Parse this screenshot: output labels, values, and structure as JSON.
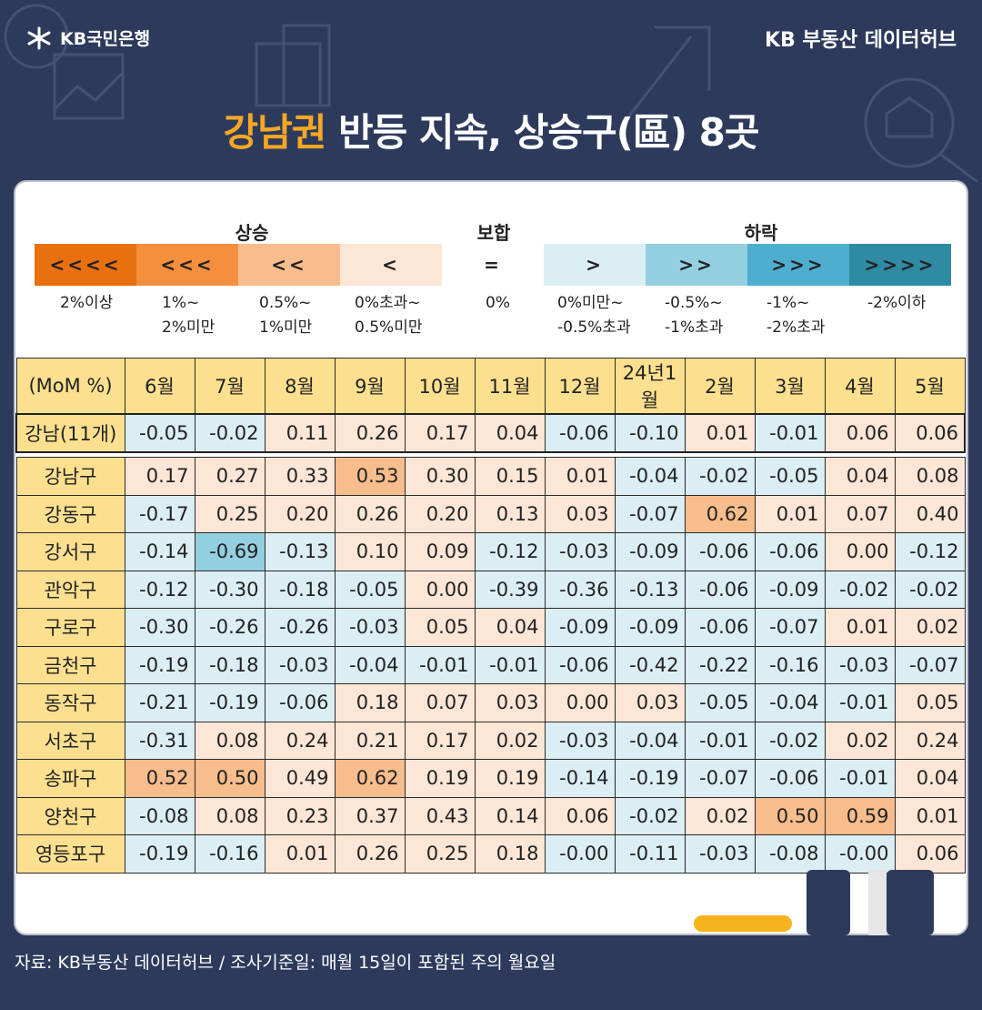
{
  "header": {
    "brand_left": "KB국민은행",
    "brand_right": "KB 부동산  데이터허브",
    "title_highlight": "강남권",
    "title_rest": " 반등 지속, 상승구(區) 8곳"
  },
  "legend": {
    "group_up": "상승",
    "group_flat": "보합",
    "group_down": "하락",
    "cells": [
      {
        "symbol": "<<<<",
        "color": "#e8700f",
        "label": [
          "2%이상"
        ]
      },
      {
        "symbol": "<<<",
        "color": "#f58f3e",
        "label": [
          "1%~",
          "2%미만"
        ]
      },
      {
        "symbol": "<<",
        "color": "#f8bd8c",
        "label": [
          "0.5%~",
          "1%미만"
        ]
      },
      {
        "symbol": "<",
        "color": "#fde6d6",
        "label": [
          "0%초과~",
          "0.5%미만"
        ]
      },
      {
        "symbol": "=",
        "color": "#ffffff",
        "label": [
          "0%"
        ]
      },
      {
        "symbol": ">",
        "color": "#dbeef4",
        "label": [
          "0%미만~",
          "-0.5%초과"
        ]
      },
      {
        "symbol": ">>",
        "color": "#93cfe0",
        "label": [
          "-0.5%~",
          "-1%초과"
        ]
      },
      {
        "symbol": ">>>",
        "color": "#4eaed0",
        "label": [
          "-1%~",
          "-2%초과"
        ]
      },
      {
        "symbol": ">>>>",
        "color": "#2f8aa3",
        "label": [
          "-2%이하"
        ]
      }
    ]
  },
  "chart_data": {
    "type": "heatmap",
    "corner_label": "(MoM %)",
    "columns": [
      "6월",
      "7월",
      "8월",
      "9월",
      "10월",
      "11월",
      "12월",
      "24년1월",
      "2월",
      "3월",
      "4월",
      "5월"
    ],
    "rows": [
      {
        "name": "강남(11개)",
        "values": [
          "-0.05",
          "-0.02",
          "0.11",
          "0.26",
          "0.17",
          "0.04",
          "-0.06",
          "-0.10",
          "0.01",
          "-0.01",
          "0.06",
          "0.06"
        ]
      },
      {
        "name": "강남구",
        "values": [
          "0.17",
          "0.27",
          "0.33",
          "0.53",
          "0.30",
          "0.15",
          "0.01",
          "-0.04",
          "-0.02",
          "-0.05",
          "0.04",
          "0.08"
        ]
      },
      {
        "name": "강동구",
        "values": [
          "-0.17",
          "0.25",
          "0.20",
          "0.26",
          "0.20",
          "0.13",
          "0.03",
          "-0.07",
          "0.62",
          "0.01",
          "0.07",
          "0.40"
        ]
      },
      {
        "name": "강서구",
        "values": [
          "-0.14",
          "-0.69",
          "-0.13",
          "0.10",
          "0.09",
          "-0.12",
          "-0.03",
          "-0.09",
          "-0.06",
          "-0.06",
          "0.00",
          "-0.12"
        ]
      },
      {
        "name": "관악구",
        "values": [
          "-0.12",
          "-0.30",
          "-0.18",
          "-0.05",
          "0.00",
          "-0.39",
          "-0.36",
          "-0.13",
          "-0.06",
          "-0.09",
          "-0.02",
          "-0.02"
        ]
      },
      {
        "name": "구로구",
        "values": [
          "-0.30",
          "-0.26",
          "-0.26",
          "-0.03",
          "0.05",
          "0.04",
          "-0.09",
          "-0.09",
          "-0.06",
          "-0.07",
          "0.01",
          "0.02"
        ]
      },
      {
        "name": "금천구",
        "values": [
          "-0.19",
          "-0.18",
          "-0.03",
          "-0.04",
          "-0.01",
          "-0.01",
          "-0.06",
          "-0.42",
          "-0.22",
          "-0.16",
          "-0.03",
          "-0.07"
        ]
      },
      {
        "name": "동작구",
        "values": [
          "-0.21",
          "-0.19",
          "-0.06",
          "0.18",
          "0.07",
          "0.03",
          "0.00",
          "0.03",
          "-0.05",
          "-0.04",
          "-0.01",
          "0.05"
        ]
      },
      {
        "name": "서초구",
        "values": [
          "-0.31",
          "0.08",
          "0.24",
          "0.21",
          "0.17",
          "0.02",
          "-0.03",
          "-0.04",
          "-0.01",
          "-0.02",
          "0.02",
          "0.24"
        ]
      },
      {
        "name": "송파구",
        "values": [
          "0.52",
          "0.50",
          "0.49",
          "0.62",
          "0.19",
          "0.19",
          "-0.14",
          "-0.19",
          "-0.07",
          "-0.06",
          "-0.01",
          "0.04"
        ]
      },
      {
        "name": "양천구",
        "values": [
          "-0.08",
          "0.08",
          "0.23",
          "0.37",
          "0.43",
          "0.14",
          "0.06",
          "-0.02",
          "0.02",
          "0.50",
          "0.59",
          "0.01"
        ]
      },
      {
        "name": "영등포구",
        "values": [
          "-0.19",
          "-0.16",
          "0.01",
          "0.26",
          "0.25",
          "0.18",
          "-0.00",
          "-0.11",
          "-0.03",
          "-0.08",
          "-0.00",
          "0.06"
        ]
      }
    ]
  },
  "footer": {
    "source": "자료: KB부동산 데이터허브 / 조사기준일: 매월 15일이 포함된 주의 월요일"
  }
}
